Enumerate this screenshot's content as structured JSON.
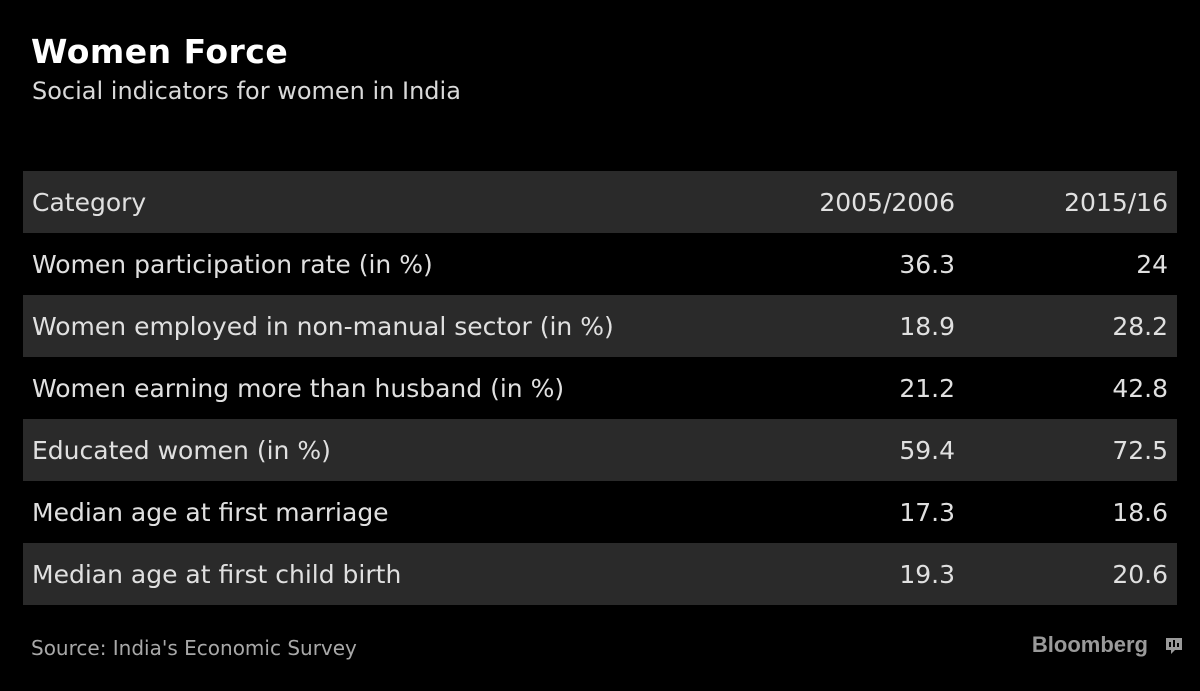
{
  "chart_data": {
    "type": "table",
    "title": "Women Force",
    "subtitle": "Social indicators for women in India",
    "columns": [
      "Category",
      "2005/2006",
      "2015/16"
    ],
    "rows": [
      {
        "category": "Women participation rate (in %)",
        "v2005": "36.3",
        "v2015": "24"
      },
      {
        "category": "Women employed in non-manual sector (in %)",
        "v2005": "18.9",
        "v2015": "28.2"
      },
      {
        "category": "Women earning more than husband (in %)",
        "v2005": "21.2",
        "v2015": "42.8"
      },
      {
        "category": "Educated women (in %)",
        "v2005": "59.4",
        "v2015": "72.5"
      },
      {
        "category": "Median age at first marriage",
        "v2005": "17.3",
        "v2015": "18.6"
      },
      {
        "category": "Median age at first child birth",
        "v2005": "19.3",
        "v2015": "20.6"
      }
    ],
    "source": "Source: India's Economic Survey"
  },
  "brand": {
    "name": "Bloomberg",
    "icon": "bloomberg-chat-icon"
  },
  "colors": {
    "background": "#000000",
    "row_shade": "#2a2a2a",
    "text": "#e0e0e0",
    "muted": "#a8a8a8"
  }
}
